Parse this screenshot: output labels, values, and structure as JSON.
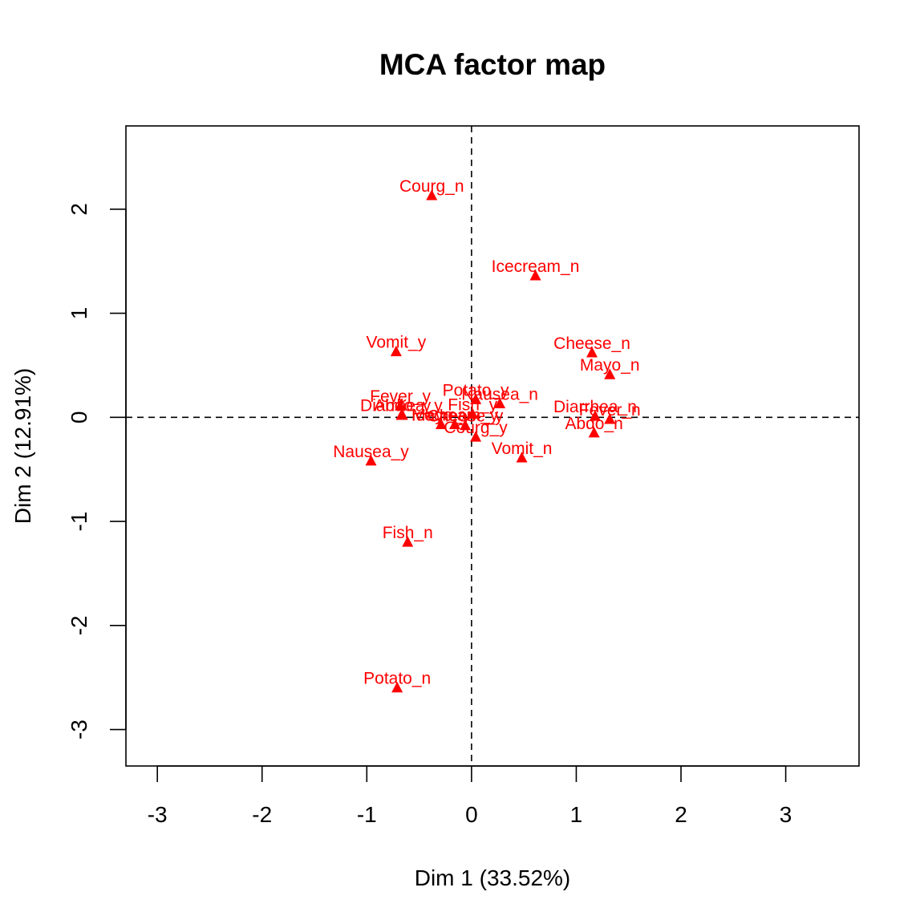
{
  "chart_data": {
    "type": "scatter",
    "title": "MCA factor map",
    "xlabel": "Dim 1 (33.52%)",
    "ylabel": "Dim 2 (12.91%)",
    "xlim": [
      -3.3,
      3.7
    ],
    "ylim": [
      -3.35,
      2.8
    ],
    "x_ticks": [
      -3,
      -2,
      -1,
      0,
      1,
      2,
      3
    ],
    "y_ticks": [
      -3,
      -2,
      -1,
      0,
      1,
      2
    ],
    "reference_lines": {
      "x": 0,
      "y": 0,
      "style": "dashed"
    },
    "grid": false,
    "color": "#ff0000",
    "marker": "triangle",
    "points": [
      {
        "label": "Courg_n",
        "x": -0.38,
        "y": 2.13
      },
      {
        "label": "Icecream_n",
        "x": 0.61,
        "y": 1.36
      },
      {
        "label": "Vomit_y",
        "x": -0.72,
        "y": 0.63
      },
      {
        "label": "Cheese_n",
        "x": 1.15,
        "y": 0.62
      },
      {
        "label": "Mayo_n",
        "x": 1.32,
        "y": 0.41
      },
      {
        "label": "Fever_y",
        "x": -0.68,
        "y": 0.11
      },
      {
        "label": "Abdo_y",
        "x": -0.66,
        "y": 0.02
      },
      {
        "label": "Potato_y",
        "x": 0.04,
        "y": 0.17
      },
      {
        "label": "Nausea_n",
        "x": 0.27,
        "y": 0.13
      },
      {
        "label": "Diarrhea_n",
        "x": 1.18,
        "y": 0.01
      },
      {
        "label": "Diarrhea_y",
        "x": -0.67,
        "y": 0.02
      },
      {
        "label": "Fish_y",
        "x": 0.01,
        "y": 0.03
      },
      {
        "label": "Mayo_y",
        "x": -0.29,
        "y": -0.07
      },
      {
        "label": "Cheese_y",
        "x": -0.06,
        "y": -0.08
      },
      {
        "label": "Icecream_y",
        "x": -0.16,
        "y": -0.07
      },
      {
        "label": "Abdo_n",
        "x": 1.17,
        "y": -0.15
      },
      {
        "label": "Fever_n",
        "x": 1.32,
        "y": -0.02
      },
      {
        "label": "Courg_y",
        "x": 0.04,
        "y": -0.19
      },
      {
        "label": "Vomit_n",
        "x": 0.48,
        "y": -0.39
      },
      {
        "label": "Nausea_y",
        "x": -0.96,
        "y": -0.42
      },
      {
        "label": "Fish_n",
        "x": -0.61,
        "y": -1.2
      },
      {
        "label": "Potato_n",
        "x": -0.71,
        "y": -2.6
      }
    ]
  }
}
